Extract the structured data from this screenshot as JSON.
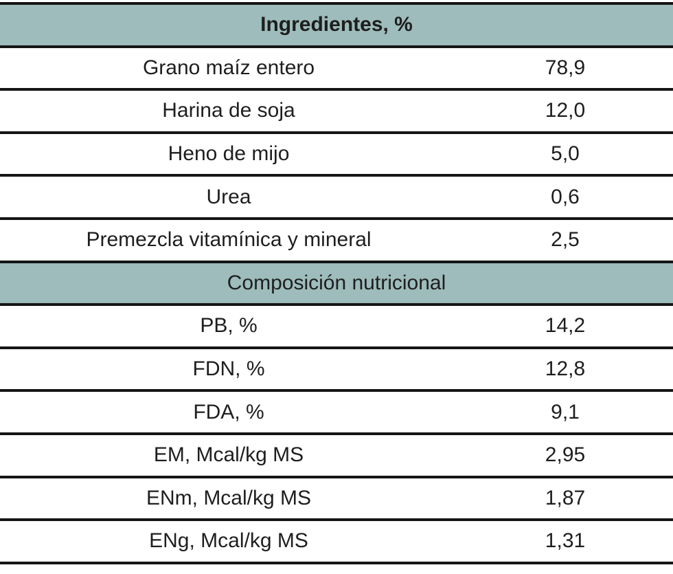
{
  "table": {
    "sections": [
      {
        "title": "Ingredientes, %",
        "rows": [
          [
            "Grano maíz entero",
            "78,9"
          ],
          [
            "Harina de soja",
            "12,0"
          ],
          [
            "Heno de mijo",
            "5,0"
          ],
          [
            "Urea",
            "0,6"
          ],
          [
            "Premezcla vitamínica y mineral",
            "2,5"
          ]
        ]
      },
      {
        "title": "Composición nutricional",
        "rows": [
          [
            "PB, %",
            "14,2"
          ],
          [
            "FDN, %",
            "12,8"
          ],
          [
            "FDA, %",
            "9,1"
          ],
          [
            "EM, Mcal/kg MS",
            "2,95"
          ],
          [
            "ENm, Mcal/kg MS",
            "1,87"
          ],
          [
            "ENg, Mcal/kg MS",
            "1,31"
          ]
        ]
      }
    ]
  }
}
